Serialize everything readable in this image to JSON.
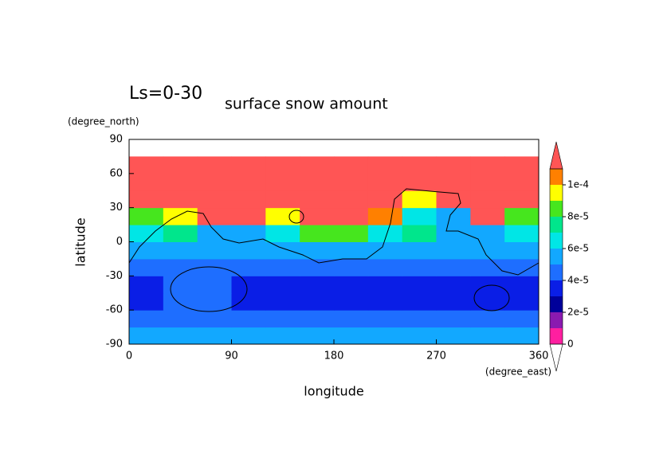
{
  "chart_data": {
    "type": "contour",
    "title": "Ls=0-30",
    "subtitle": "surface snow amount",
    "xlabel": "longitude",
    "xunit": "(degree_east)",
    "ylabel": "latitude",
    "yunit": "(degree_north)",
    "xlim": [
      0,
      360
    ],
    "xticks": [
      0,
      90,
      180,
      270,
      360
    ],
    "ylim": [
      -90,
      90
    ],
    "yticks": [
      -90,
      -60,
      -30,
      0,
      30,
      60,
      90
    ],
    "x": [
      0,
      30,
      60,
      90,
      120,
      150,
      180,
      210,
      240,
      270,
      300,
      330,
      360
    ],
    "y": [
      -90,
      -75,
      -60,
      -45,
      -30,
      -15,
      0,
      15,
      30,
      45,
      60,
      75,
      90
    ],
    "z": [
      [
        5.5e-05,
        5.5e-05,
        5.5e-05,
        5.5e-05,
        5.5e-05,
        5.5e-05,
        5.5e-05,
        5.5e-05,
        5.5e-05,
        5.5e-05,
        5.5e-05,
        5.5e-05
      ],
      [
        4.5e-05,
        4.5e-05,
        4.5e-05,
        4.5e-05,
        4.5e-05,
        4.5e-05,
        4.5e-05,
        4.5e-05,
        4.5e-05,
        4.5e-05,
        4.5e-05,
        4.5e-05
      ],
      [
        3.5e-05,
        4.5e-05,
        4.5e-05,
        3.5e-05,
        3.5e-05,
        3.5e-05,
        3.5e-05,
        3.5e-05,
        3.5e-05,
        3.5e-05,
        3.5e-05,
        3.5e-05
      ],
      [
        3.5e-05,
        4.5e-05,
        4.5e-05,
        3.5e-05,
        3.5e-05,
        3.5e-05,
        3.5e-05,
        3.5e-05,
        3.5e-05,
        3.5e-05,
        3.5e-05,
        3.5e-05
      ],
      [
        4.5e-05,
        4.5e-05,
        4.5e-05,
        4.5e-05,
        4.5e-05,
        4.5e-05,
        4.5e-05,
        4.5e-05,
        4.5e-05,
        4.5e-05,
        4.5e-05,
        4.5e-05
      ],
      [
        5.5e-05,
        5.5e-05,
        5.5e-05,
        5.5e-05,
        5.5e-05,
        5.5e-05,
        5.5e-05,
        5.5e-05,
        5.5e-05,
        5.5e-05,
        5.5e-05,
        5.5e-05
      ],
      [
        6.5e-05,
        7.5e-05,
        5.5e-05,
        5.5e-05,
        6.5e-05,
        8.5e-05,
        8.5e-05,
        6.5e-05,
        7.5e-05,
        5.5e-05,
        5.5e-05,
        6.5e-05
      ],
      [
        8.5e-05,
        9.5e-05,
        0.00012,
        0.00012,
        9.5e-05,
        0.00012,
        0.00012,
        0.000105,
        6.5e-05,
        5.5e-05,
        0.00012,
        8.5e-05
      ],
      [
        0.00012,
        0.00012,
        0.00012,
        0.00012,
        0.00012,
        0.00012,
        0.00012,
        0.00012,
        9.5e-05,
        0.00012,
        0.00012,
        0.00012
      ],
      [
        0.00012,
        0.00012,
        0.00012,
        0.00012,
        0.00012,
        0.00012,
        0.00012,
        0.00012,
        0.00012,
        0.00012,
        0.00012,
        0.00012
      ],
      [
        0.00012,
        0.00012,
        0.00012,
        0.00012,
        0.00012,
        0.00012,
        0.00012,
        0.00012,
        0.00012,
        0.00012,
        0.00012,
        0.00012
      ],
      [
        null,
        null,
        null,
        null,
        null,
        null,
        null,
        null,
        null,
        null,
        null,
        null
      ]
    ],
    "levels": [
      0,
      1e-05,
      2e-05,
      3e-05,
      4e-05,
      5e-05,
      6e-05,
      7e-05,
      8e-05,
      9e-05,
      0.0001,
      0.00011
    ],
    "colors": [
      "#ff1fa0",
      "#8a1ab0",
      "#00009a",
      "#0a1ee6",
      "#1e6eff",
      "#12a8ff",
      "#00e6e6",
      "#00e68c",
      "#46e61e",
      "#ffff00",
      "#ff8000",
      "#ff5555"
    ],
    "cticks": [
      0,
      {
        "value": 2e-05,
        "label": "2e-5"
      },
      {
        "value": 4e-05,
        "label": "4e-5"
      },
      {
        "value": 6e-05,
        "label": "6e-5"
      },
      {
        "value": 8e-05,
        "label": "8e-5"
      },
      {
        "value": 0.0001,
        "label": "1e-4"
      }
    ]
  }
}
